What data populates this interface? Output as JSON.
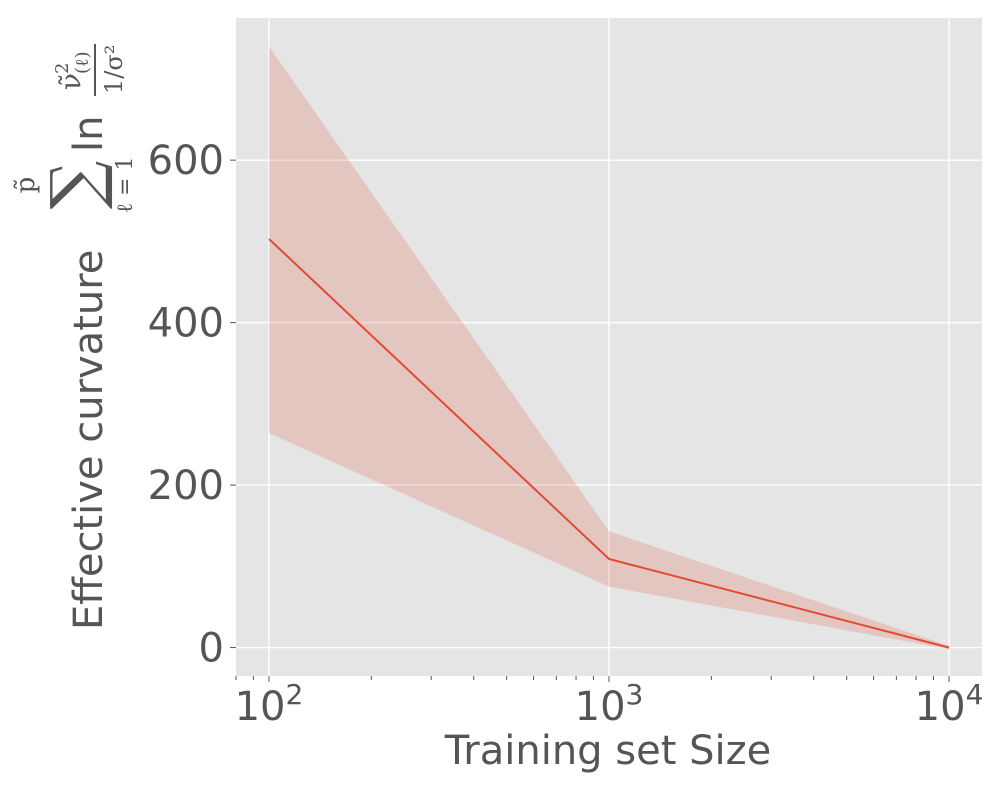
{
  "chart_data": {
    "type": "line",
    "xscale": "log",
    "x": [
      100,
      1000,
      10000
    ],
    "xlim": [
      80,
      12500
    ],
    "ylim": [
      -35,
      775
    ],
    "xticks": [
      100,
      1000,
      10000
    ],
    "xtick_labels": [
      {
        "base": "10",
        "exp": "2"
      },
      {
        "base": "10",
        "exp": "3"
      },
      {
        "base": "10",
        "exp": "4"
      }
    ],
    "yticks": [
      0,
      200,
      400,
      600
    ],
    "ytick_labels": [
      "0",
      "200",
      "400",
      "600"
    ],
    "xlabel": "Training set Size",
    "ylabel": "Effective curvature",
    "ylabel_formula": {
      "sum_upper": "p̃",
      "sum_lower": "ℓ = 1",
      "ln": "ln",
      "numerator": "ν̃",
      "numerator_sup": "2",
      "numerator_sub": "(ℓ)",
      "denominator": "1/σ²"
    },
    "series": [
      {
        "values": [
          503,
          109,
          0
        ],
        "lower": [
          264,
          75,
          -2
        ],
        "upper": [
          740,
          143,
          2
        ],
        "color": "#E24A33",
        "band_color": "#E24A33"
      }
    ],
    "grid": true,
    "style": {
      "axes_background": "#E5E5E5",
      "grid_color": "#FFFFFF",
      "text_color": "#555555"
    }
  }
}
